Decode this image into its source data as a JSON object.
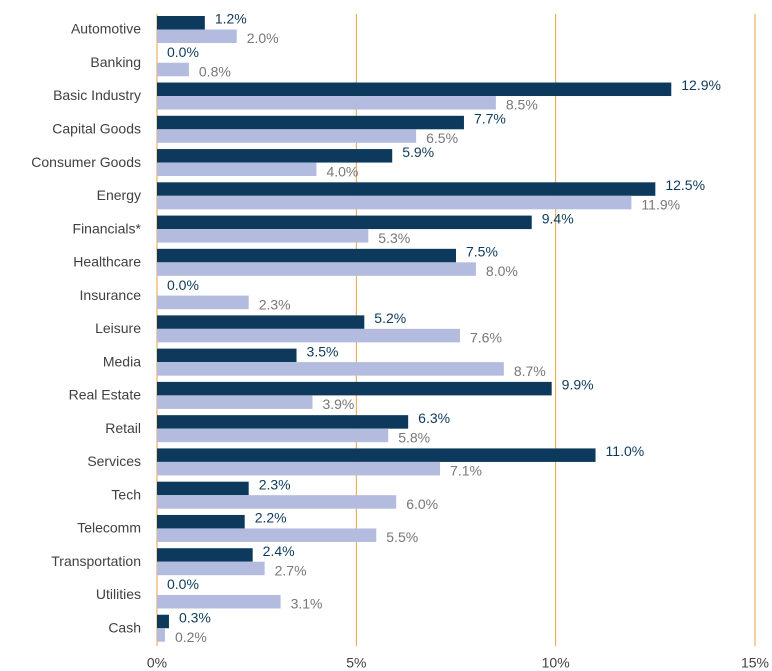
{
  "chart_data": {
    "type": "bar",
    "orientation": "horizontal",
    "categories": [
      "Automotive",
      "Banking",
      "Basic Industry",
      "Capital Goods",
      "Consumer Goods",
      "Energy",
      "Financials*",
      "Healthcare",
      "Insurance",
      "Leisure",
      "Media",
      "Real Estate",
      "Retail",
      "Services",
      "Tech",
      "Telecomm",
      "Transportation",
      "Utilities",
      "Cash"
    ],
    "series": [
      {
        "color": "#0d3a5c",
        "label_color": "#0d3a5c",
        "values": [
          1.2,
          0.0,
          12.9,
          7.7,
          5.9,
          12.5,
          9.4,
          7.5,
          0.0,
          5.2,
          3.5,
          9.9,
          6.3,
          11.0,
          2.3,
          2.2,
          2.4,
          0.0,
          0.3
        ],
        "value_labels": [
          "1.2%",
          "0.0%",
          "12.9%",
          "7.7%",
          "5.9%",
          "12.5%",
          "9.4%",
          "7.5%",
          "0.0%",
          "5.2%",
          "3.5%",
          "9.9%",
          "6.3%",
          "11.0%",
          "2.3%",
          "2.2%",
          "2.4%",
          "0.0%",
          "0.3%"
        ]
      },
      {
        "color": "#b3bcdf",
        "label_color": "#777777",
        "values": [
          2.0,
          0.8,
          8.5,
          6.5,
          4.0,
          11.9,
          5.3,
          8.0,
          2.3,
          7.6,
          8.7,
          3.9,
          5.8,
          7.1,
          6.0,
          5.5,
          2.7,
          3.1,
          0.2
        ],
        "value_labels": [
          "2.0%",
          "0.8%",
          "8.5%",
          "6.5%",
          "4.0%",
          "11.9%",
          "5.3%",
          "8.0%",
          "2.3%",
          "7.6%",
          "8.7%",
          "3.9%",
          "5.8%",
          "7.1%",
          "6.0%",
          "5.5%",
          "2.7%",
          "3.1%",
          "0.2%"
        ]
      }
    ],
    "xlim": [
      0,
      15
    ],
    "xticks": [
      {
        "value": 0,
        "label": "0%"
      },
      {
        "value": 5,
        "label": "5%"
      },
      {
        "value": 10,
        "label": "10%"
      },
      {
        "value": 15,
        "label": "15%"
      }
    ],
    "grid": true,
    "grid_color": "#e8a040"
  }
}
